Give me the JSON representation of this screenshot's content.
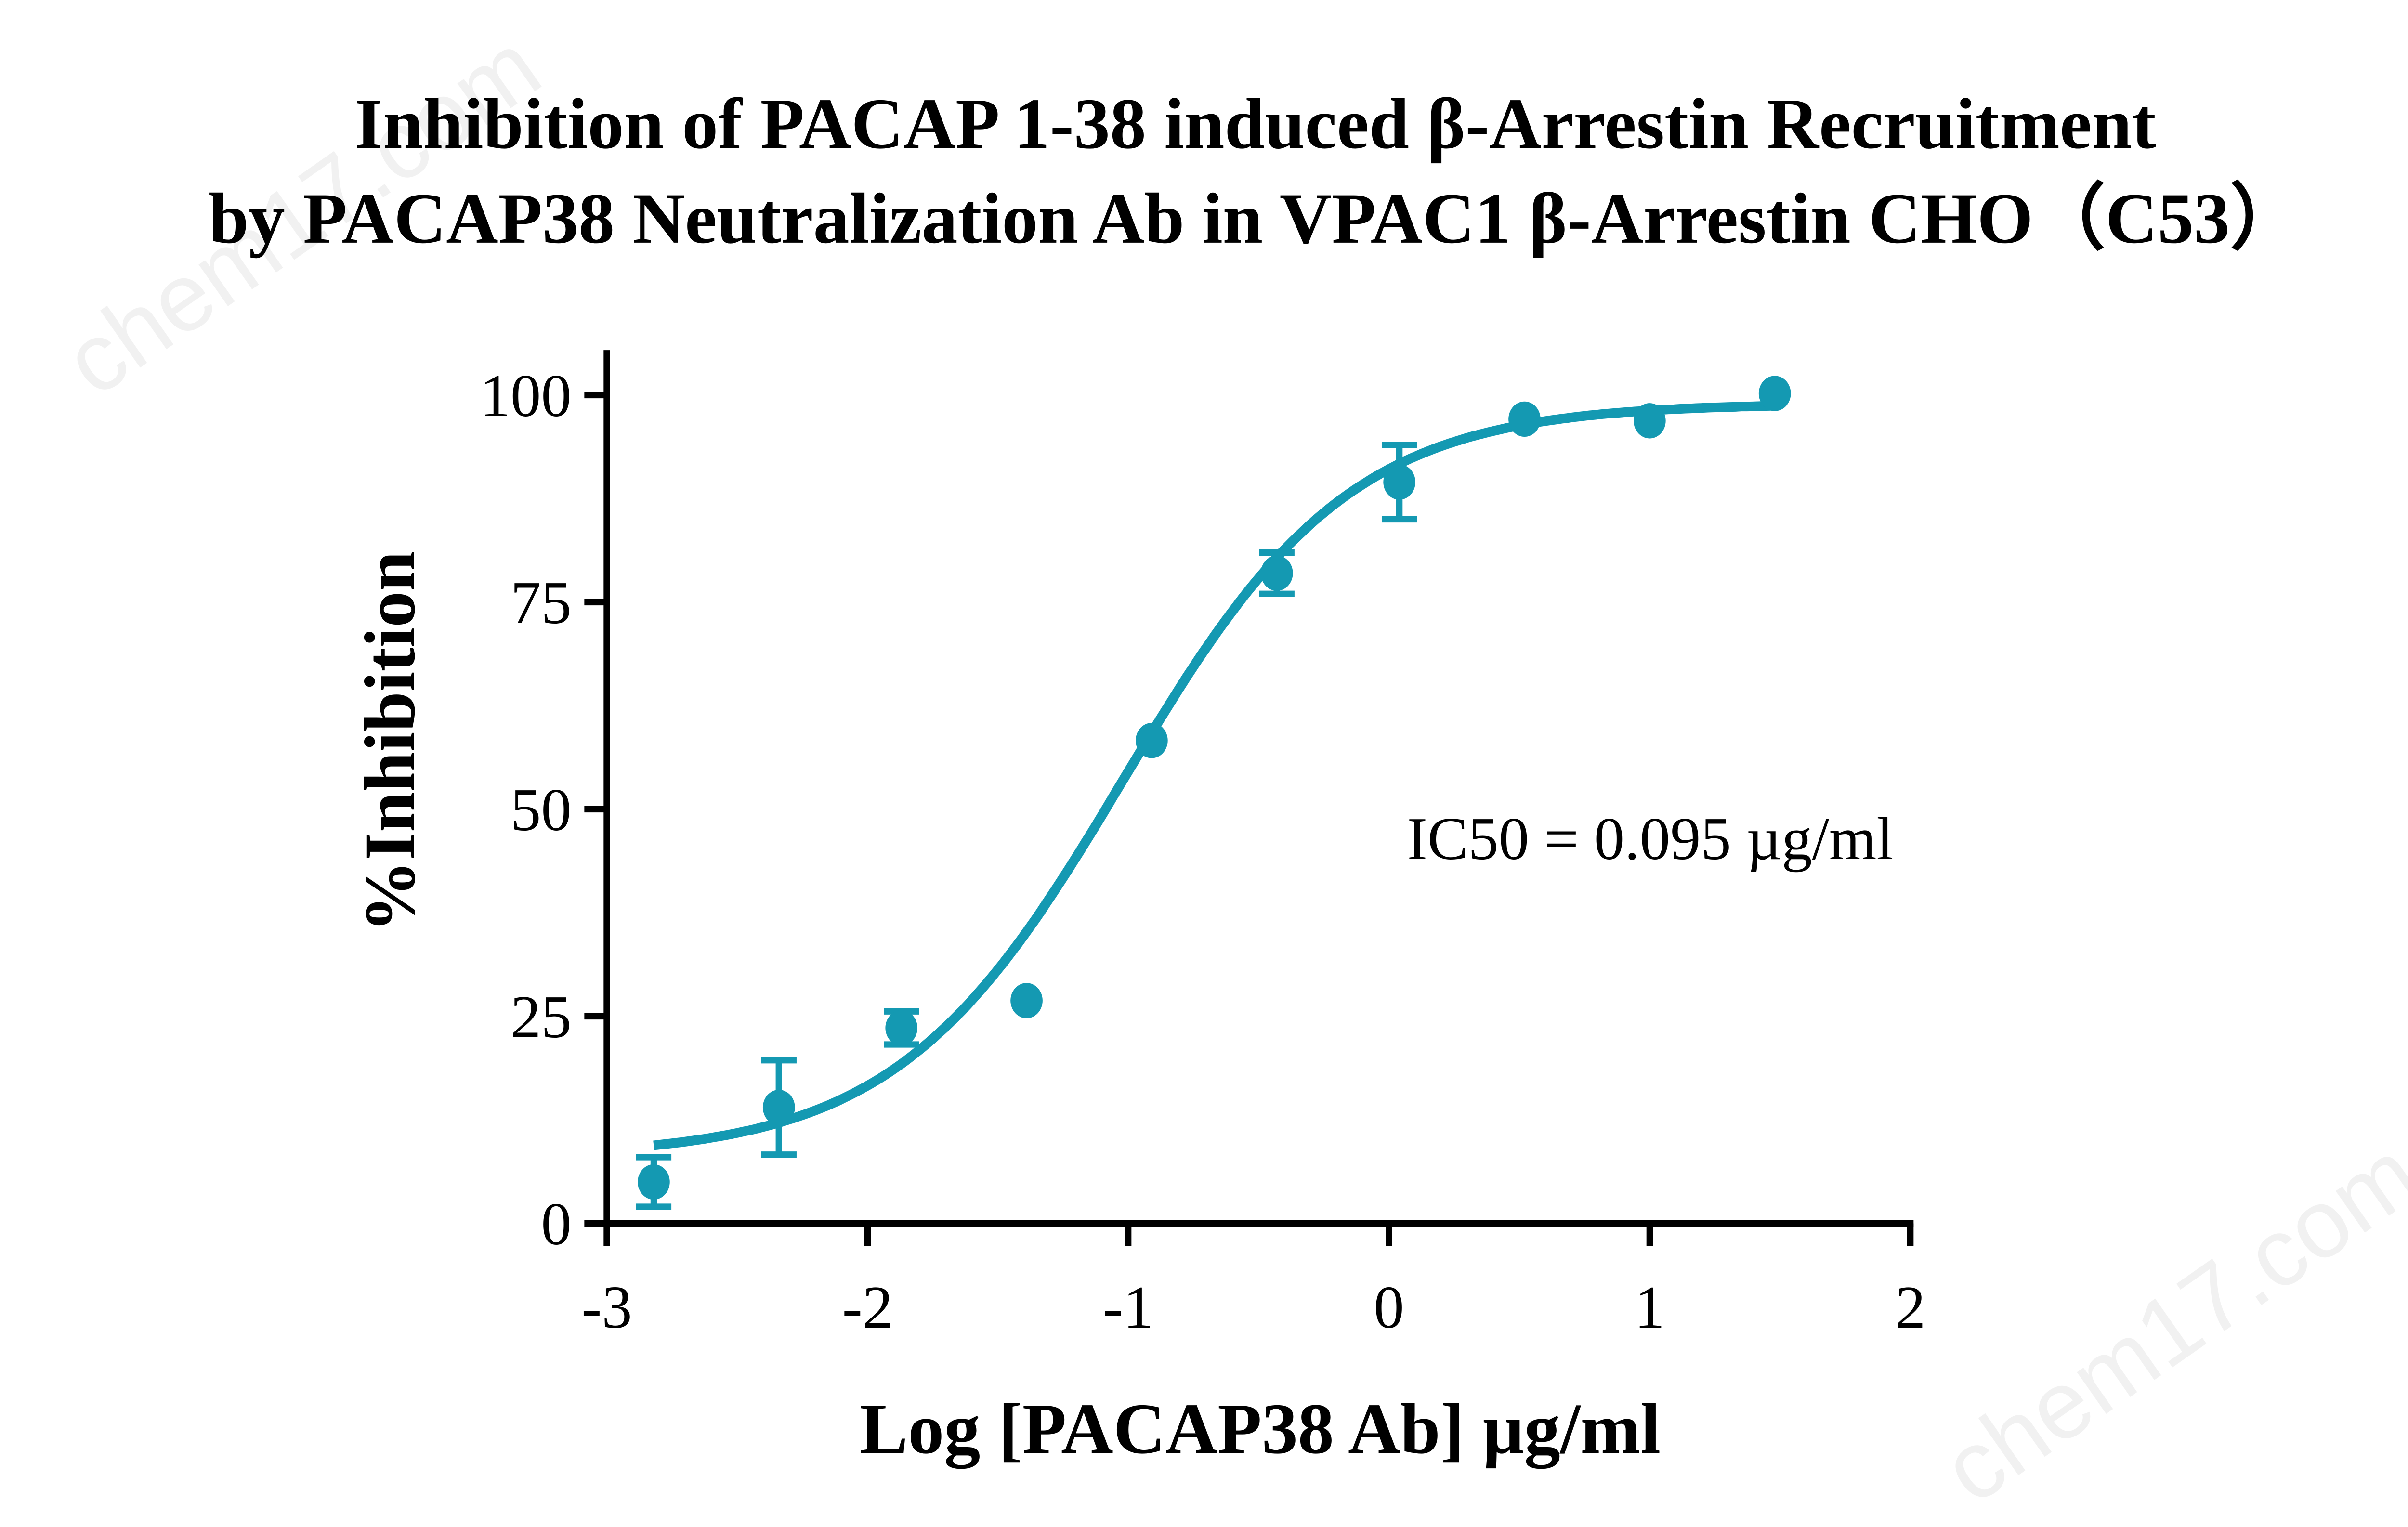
{
  "chart_data": {
    "type": "scatter",
    "title_lines": [
      "Inhibition of PACAP 1-38 induced β-Arrestin Recruitment",
      "by PACAP38 Neutralization Ab in VPAC1 β-Arrestin CHO（C53）"
    ],
    "xlabel": "Log [PACAP38 Ab] µg/ml",
    "ylabel": "%Inhibition",
    "xlim": [
      -3,
      2
    ],
    "ylim": [
      0,
      100
    ],
    "xticks": [
      -3,
      -2,
      -1,
      0,
      1,
      2
    ],
    "xtick_labels": [
      "-3",
      "-2",
      "-1",
      "0",
      "1",
      "2"
    ],
    "yticks": [
      0,
      25,
      50,
      75,
      100
    ],
    "ytick_labels": [
      "0",
      "25",
      "50",
      "75",
      "100"
    ],
    "grid": false,
    "color": "#1499b2",
    "annotation": "IC50 = 0.095 µg/ml",
    "points": [
      {
        "x": -2.82,
        "y": 5.0,
        "err": 3.0
      },
      {
        "x": -2.34,
        "y": 14.0,
        "err": 5.7
      },
      {
        "x": -1.87,
        "y": 23.6,
        "err": 2.0
      },
      {
        "x": -1.39,
        "y": 26.9,
        "err": 0
      },
      {
        "x": -0.91,
        "y": 58.3,
        "err": 0
      },
      {
        "x": -0.43,
        "y": 78.5,
        "err": 2.5
      },
      {
        "x": 0.04,
        "y": 89.5,
        "err": 4.5
      },
      {
        "x": 0.52,
        "y": 97.1,
        "err": 0
      },
      {
        "x": 1.0,
        "y": 96.9,
        "err": 0
      },
      {
        "x": 1.48,
        "y": 100.2,
        "err": 0
      }
    ],
    "fit": {
      "model": "4PL",
      "bottom": 8,
      "top": 99,
      "logIC50": -1.02,
      "hill": 1.0
    }
  },
  "watermark": "chem17.com"
}
